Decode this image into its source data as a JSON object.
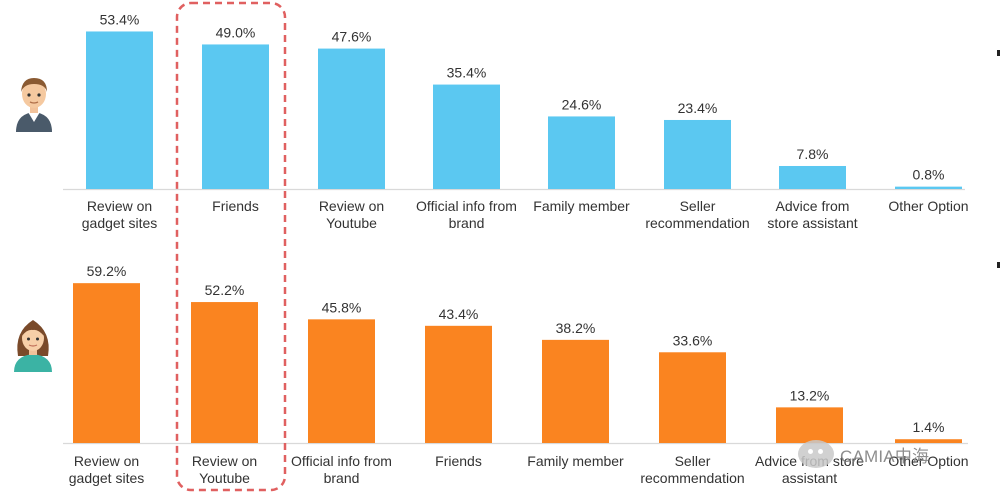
{
  "chart_data": [
    {
      "type": "bar",
      "segment": "male",
      "color": "#5bc8f1",
      "categories": [
        "Review on gadget sites",
        "Friends",
        "Review on Youtube",
        "Official info from brand",
        "Family member",
        "Seller recommendation",
        "Advice from store assistant",
        "Other Option"
      ],
      "category_lines": [
        [
          "Review on",
          "gadget sites"
        ],
        [
          "Friends"
        ],
        [
          "Review on",
          "Youtube"
        ],
        [
          "Official info from",
          "brand"
        ],
        [
          "Family member"
        ],
        [
          "Seller",
          "recommendation"
        ],
        [
          "Advice from",
          "store assistant"
        ],
        [
          "Other Option"
        ]
      ],
      "values": [
        53.4,
        49.0,
        47.6,
        35.4,
        24.6,
        23.4,
        7.8,
        0.8
      ],
      "value_labels": [
        "53.4%",
        "49.0%",
        "47.6%",
        "35.4%",
        "24.6%",
        "23.4%",
        "7.8%",
        "0.8%"
      ],
      "highlighted_category": "Friends"
    },
    {
      "type": "bar",
      "segment": "female",
      "color": "#fa8420",
      "categories": [
        "Review on gadget sites",
        "Review on Youtube",
        "Official info from brand",
        "Friends",
        "Family member",
        "Seller recommendation",
        "Advice from store assistant",
        "Other Option"
      ],
      "category_lines": [
        [
          "Review on",
          "gadget sites"
        ],
        [
          "Review on",
          "Youtube"
        ],
        [
          "Official info from",
          "brand"
        ],
        [
          "Friends"
        ],
        [
          "Family member"
        ],
        [
          "Seller",
          "recommendation"
        ],
        [
          "Advice from store",
          "assistant"
        ],
        [
          "Other Option"
        ]
      ],
      "values": [
        59.2,
        52.2,
        45.8,
        43.4,
        38.2,
        33.6,
        13.2,
        1.4
      ],
      "value_labels": [
        "59.2%",
        "52.2%",
        "45.8%",
        "43.4%",
        "38.2%",
        "33.6%",
        "13.2%",
        "1.4%"
      ],
      "highlighted_category": "Review on Youtube"
    }
  ],
  "highlight_color": "#e06060",
  "icons": [
    "male-avatar-icon",
    "female-avatar-icon",
    "wechat-logo-icon"
  ],
  "watermark": {
    "text": "CAMIA中海"
  }
}
